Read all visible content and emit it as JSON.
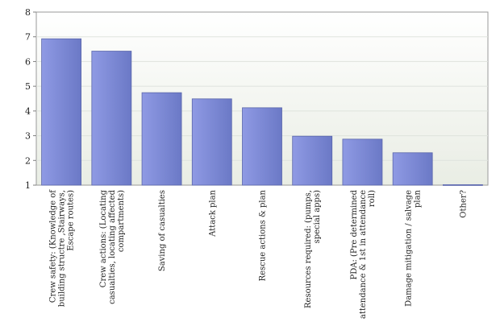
{
  "chart_data": {
    "type": "bar",
    "categories": [
      [
        "Crew safety: (Knowledge of",
        "building structre ,Stairways,",
        "Escape routes)"
      ],
      [
        "Crew actions: (Locating",
        "casualties, locating affected",
        "compartments)"
      ],
      [
        "Saving of casualties"
      ],
      [
        "Attack plan"
      ],
      [
        "Rescue actions & plan"
      ],
      [
        "Resources required: (pumps,",
        "special apps)"
      ],
      [
        "PDA: (Pre determined",
        "attendance & 1st in attendance",
        "roll)"
      ],
      [
        "Damage mitigation / salvage",
        "plan"
      ],
      [
        "Other?"
      ]
    ],
    "values": [
      6.92,
      6.42,
      4.74,
      4.49,
      4.13,
      2.98,
      2.86,
      2.31,
      1.02
    ],
    "ylim": [
      1,
      8
    ],
    "yticks": [
      1,
      2,
      3,
      4,
      5,
      6,
      7,
      8
    ],
    "grid": true,
    "colors": {
      "bar_light": "#8f9ae4",
      "bar_dark": "#6b79c6",
      "bar_edge": "#5a66aa",
      "plot_bg_top": "#ffffff",
      "plot_bg_bottom": "#e9ede4",
      "grid": "#dfe3dd",
      "axis": "#7f7f7f"
    }
  }
}
